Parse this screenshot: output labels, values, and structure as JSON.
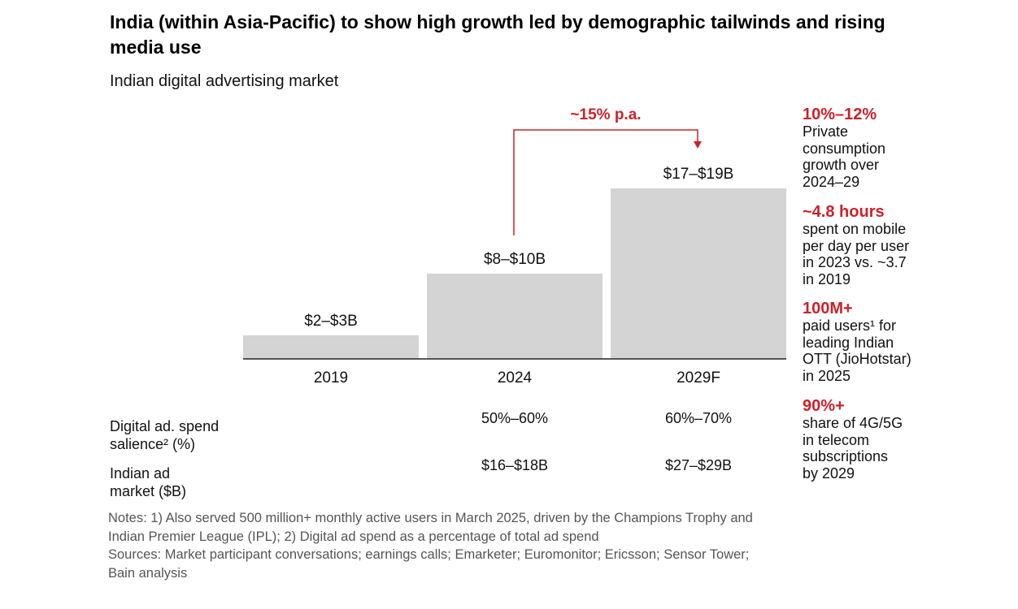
{
  "header": {
    "title": "India (within Asia-Pacific) to show high growth led by demographic tailwinds and rising media use",
    "subtitle": "Indian digital advertising market"
  },
  "colors": {
    "accent": "#cc2229",
    "bar": "#d4d4d4",
    "axis": "#222222"
  },
  "chart_data": {
    "type": "bar",
    "categories": [
      "2019",
      "2024",
      "2029F"
    ],
    "series": [
      {
        "low": [
          2,
          8,
          17
        ],
        "high": [
          3,
          10,
          19
        ]
      }
    ],
    "values": [
      2.5,
      9,
      18
    ],
    "data_labels": [
      "$2–$3B",
      "$8–$10B",
      "$17–$19B"
    ],
    "ylim": [
      0,
      18
    ],
    "grid": false,
    "annotation": {
      "label": "~15% p.a.",
      "from": "2024",
      "to": "2029F",
      "color": "#cc2229"
    }
  },
  "table": {
    "rows": [
      {
        "label_lines": [
          "Digital ad. spend",
          "salience² (%)"
        ],
        "cells": [
          "",
          "50%–60%",
          "60%–70%"
        ]
      },
      {
        "label_lines": [
          "Indian ad",
          "market ($B)"
        ],
        "cells": [
          "",
          "$16–$18B",
          "$27–$29B"
        ]
      }
    ]
  },
  "facts": [
    {
      "value": "10%–12%",
      "desc": "Private\nconsumption\ngrowth over\n2024–29"
    },
    {
      "value": "~4.8 hours",
      "desc": "spent on mobile\nper day per user\nin 2023 vs. ~3.7\nin 2019"
    },
    {
      "value": "100M+",
      "desc": "paid users¹ for\nleading Indian\nOTT (JioHotstar)\nin 2025"
    },
    {
      "value": "90%+",
      "desc": "share of 4G/5G\nin telecom\nsubscriptions\nby 2029"
    }
  ],
  "notes": {
    "line1": "Notes: 1) Also served 500 million+ monthly active users in March 2025, driven by the Champions Trophy and",
    "line2": "Indian Premier League (IPL); 2) Digital ad spend as a percentage of total ad spend",
    "line3": "Sources: Market participant conversations; earnings calls; Emarketer; Euromonitor; Ericsson; Sensor Tower;",
    "line4": "Bain analysis"
  }
}
